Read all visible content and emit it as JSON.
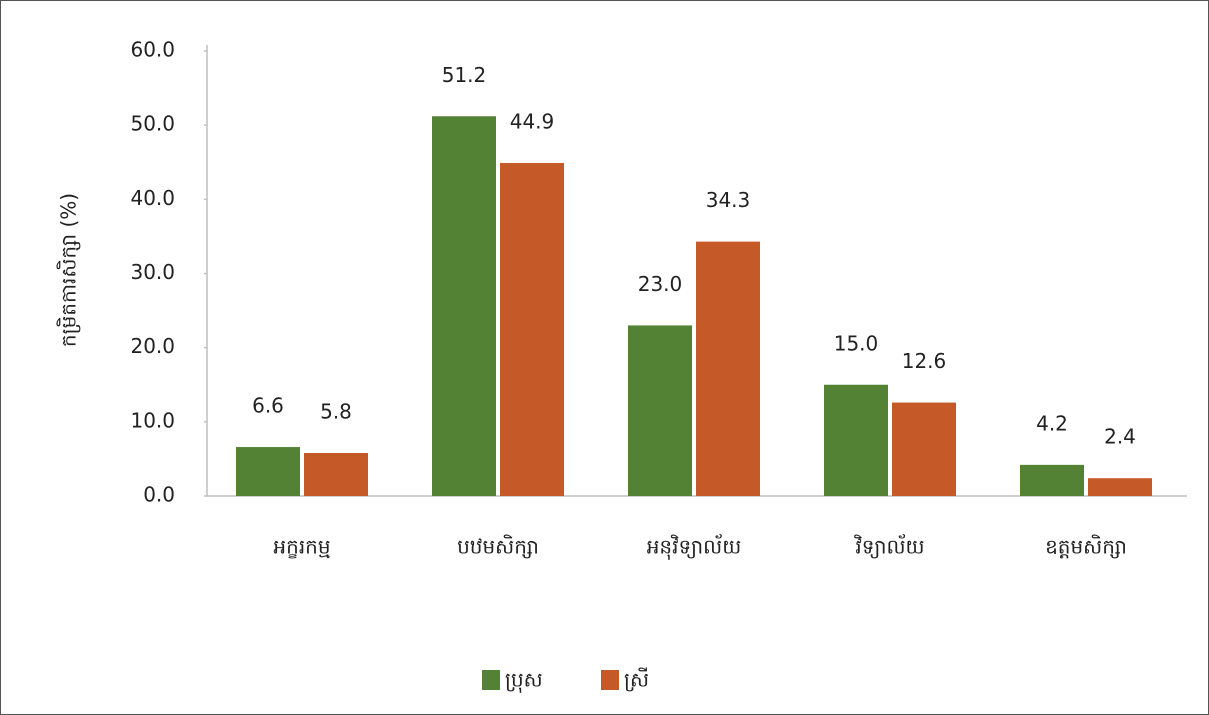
{
  "chart_data": {
    "type": "bar",
    "y_label": "កម្រិតការសិក្សា (%)",
    "categories": [
      "អក្ខរកម្ម",
      "បឋមសិក្សា",
      "អនុវិទ្យាល័យ",
      "វិទ្យាល័យ",
      "ឧត្តមសិក្សា"
    ],
    "series": [
      {
        "name": "ប្រុស",
        "color": "#548235",
        "values": [
          6.6,
          51.2,
          23.0,
          15.0,
          4.2
        ],
        "value_labels": [
          "6.6",
          "51.2",
          "23.0",
          "15.0",
          "4.2"
        ]
      },
      {
        "name": "ស្រី",
        "color": "#c55a28",
        "values": [
          5.8,
          44.9,
          34.3,
          12.6,
          2.4
        ],
        "value_labels": [
          "5.8",
          "44.9",
          "34.3",
          "12.6",
          "2.4"
        ]
      }
    ],
    "ylim": [
      0,
      60
    ],
    "yticks": [
      {
        "value": 0,
        "label": "0.0"
      },
      {
        "value": 10,
        "label": "10.0"
      },
      {
        "value": 20,
        "label": "20.0"
      },
      {
        "value": 30,
        "label": "30.0"
      },
      {
        "value": 40,
        "label": "40.0"
      },
      {
        "value": 50,
        "label": "50.0"
      },
      {
        "value": 60,
        "label": "60.0"
      }
    ],
    "legend": "bottom"
  }
}
